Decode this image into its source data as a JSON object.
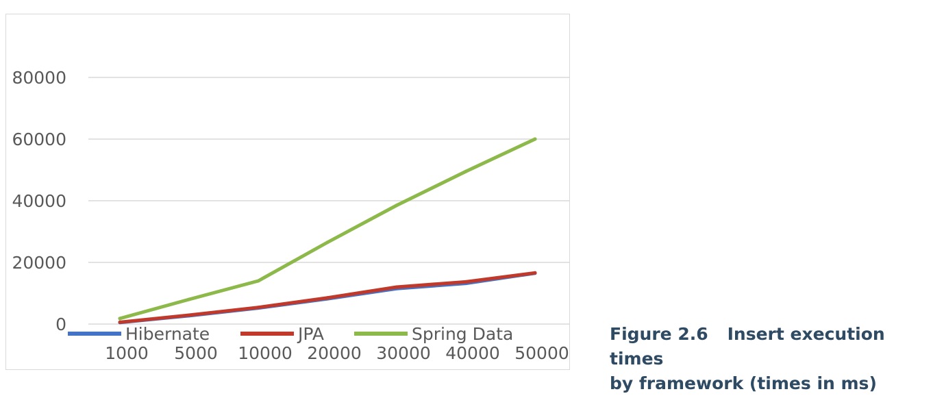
{
  "chart_data": {
    "type": "line",
    "title": "",
    "xlabel": "",
    "ylabel": "",
    "categories": [
      "1000",
      "5000",
      "10000",
      "20000",
      "30000",
      "40000",
      "50000"
    ],
    "ylim": [
      0,
      100000
    ],
    "yticks": [
      0,
      20000,
      40000,
      60000,
      80000
    ],
    "grid": true,
    "legend_position": "bottom",
    "series": [
      {
        "name": "Hibernate",
        "color": "#4472c4",
        "values": [
          500,
          2700,
          5200,
          8200,
          11500,
          13200,
          16500
        ]
      },
      {
        "name": "JPA",
        "color": "#c0392b",
        "values": [
          600,
          2900,
          5400,
          8500,
          12000,
          13700,
          16600
        ]
      },
      {
        "name": "Spring Data",
        "color": "#8db84a",
        "values": [
          1800,
          8000,
          14000,
          26500,
          38500,
          49500,
          60000
        ]
      }
    ]
  },
  "caption": {
    "figure_number": "Figure 2.6",
    "line1": "Insert execution times",
    "line2": "by framework (times in ms)"
  }
}
